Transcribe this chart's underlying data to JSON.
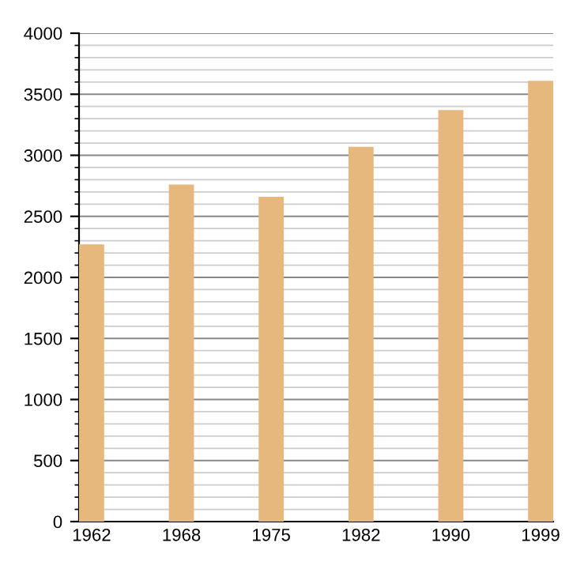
{
  "chart_data": {
    "type": "bar",
    "categories": [
      "1962",
      "1968",
      "1975",
      "1982",
      "1990",
      "1999"
    ],
    "values": [
      2270,
      2760,
      2660,
      3070,
      3370,
      3610
    ],
    "color": "#e6b87e",
    "ylim": [
      0,
      4000
    ],
    "yticks": [
      0,
      500,
      1000,
      1500,
      2000,
      2500,
      3000,
      3500,
      4000
    ],
    "grid": "y"
  }
}
